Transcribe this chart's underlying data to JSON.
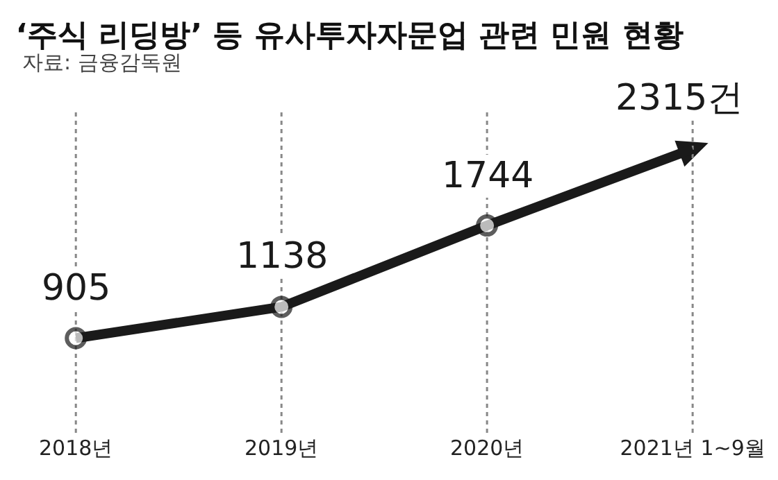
{
  "chart_data": {
    "type": "line",
    "title": "‘주식 리딩방’ 등 유사투자자문업 관련 민원 현황",
    "subtitle": "자료: 금융감독원",
    "categories": [
      "2018년",
      "2019년",
      "2020년",
      "2021년 1~9월"
    ],
    "series": [
      {
        "color": "#1a1a1a",
        "values": [
          905,
          1138,
          1744,
          2315
        ],
        "value_labels": [
          "905",
          "1138",
          "1744",
          "2315건"
        ]
      }
    ],
    "marker": "circle",
    "line_style": "solid",
    "ref_lines": [
      {
        "axis": "x",
        "value": "2018년",
        "color": "#888888",
        "line_style": "dotted"
      },
      {
        "axis": "x",
        "value": "2019년",
        "color": "#888888",
        "line_style": "dotted"
      },
      {
        "axis": "x",
        "value": "2020년",
        "color": "#888888",
        "line_style": "dotted"
      },
      {
        "axis": "x",
        "value": "2021년 1~9월",
        "color": "#888888",
        "line_style": "dotted"
      }
    ]
  }
}
